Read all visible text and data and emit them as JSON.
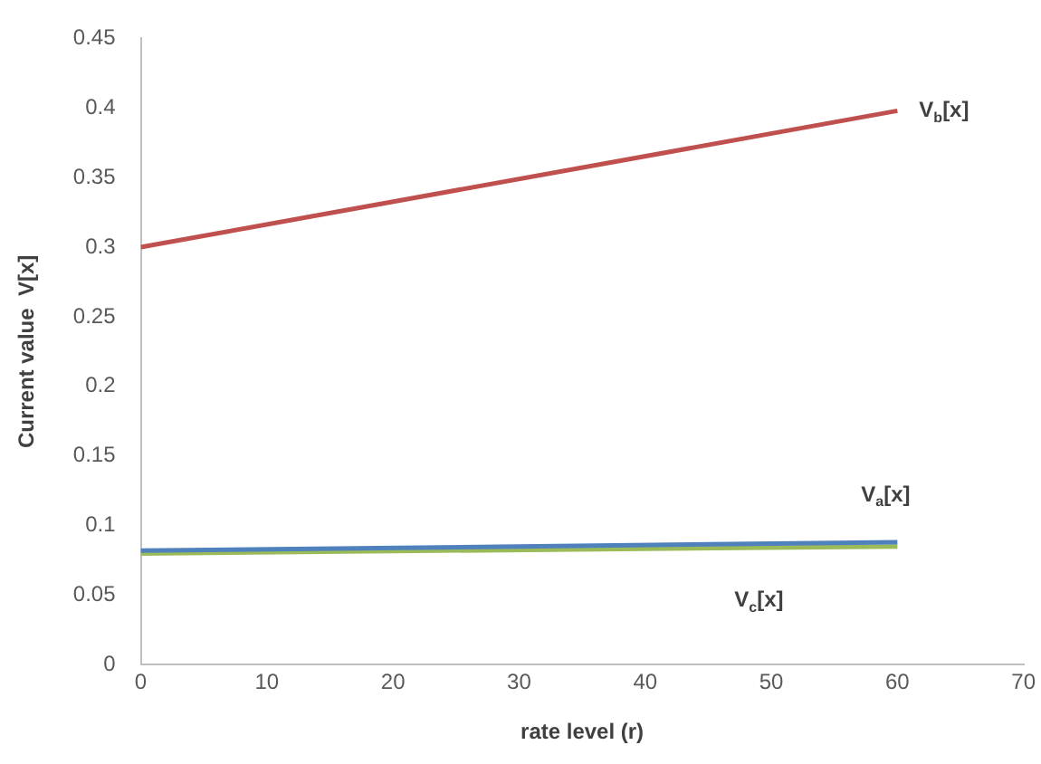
{
  "chart_data": {
    "type": "line",
    "xlabel": "rate level (r)",
    "ylabel": "Current value  V[x]",
    "x": [
      0,
      60
    ],
    "series": [
      {
        "name": "V$_{b}$[x]",
        "color": "#c0504d",
        "values": [
          0.3,
          0.398
        ]
      },
      {
        "name": "V$_{a}$[x]",
        "color": "#4f81bd",
        "values": [
          0.082,
          0.088
        ]
      },
      {
        "name": "V$_{c}$[x]",
        "color": "#9bbb59",
        "values": [
          0.08,
          0.085
        ]
      }
    ],
    "xlim": [
      0,
      70
    ],
    "xticks": [
      0,
      10,
      20,
      30,
      40,
      50,
      60,
      70
    ],
    "ylim": [
      0,
      0.45
    ],
    "yticks": [
      0,
      0.05,
      0.1,
      0.15,
      0.2,
      0.25,
      0.3,
      0.35,
      0.4,
      0.45
    ],
    "grid": false,
    "legend": false,
    "marker": "none",
    "line_style": "solid"
  }
}
